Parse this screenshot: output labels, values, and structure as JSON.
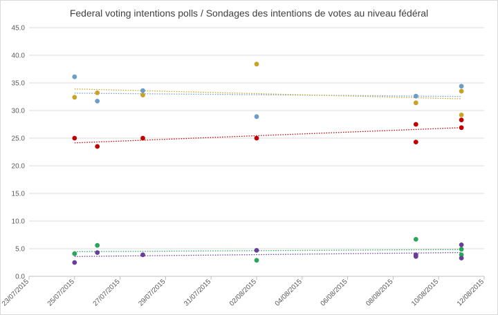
{
  "chart_data": {
    "type": "scatter",
    "title": "Federal voting intentions polls / Sondages des intentions de votes au niveau fédéral",
    "xlabel": "",
    "ylabel": "",
    "x_type": "date",
    "xlim": [
      "2015-07-23",
      "2015-08-12"
    ],
    "x_ticks": [
      "23/07/2015",
      "25/07/2015",
      "27/07/2015",
      "29/07/2015",
      "31/07/2015",
      "02/08/2015",
      "04/08/2015",
      "06/08/2015",
      "08/08/2015",
      "10/08/2015",
      "12/08/2015"
    ],
    "ylim": [
      0,
      45
    ],
    "y_ticks": [
      "0.0",
      "5.0",
      "10.0",
      "15.0",
      "20.0",
      "25.0",
      "30.0",
      "35.0",
      "40.0",
      "45.0"
    ],
    "grid": "horizontal",
    "legend": "none",
    "trendlines": "linear, dotted",
    "series": [
      {
        "color": "#6a9ec8",
        "points": [
          {
            "x": "2015-07-25",
            "y": 36.1
          },
          {
            "x": "2015-07-26",
            "y": 31.7
          },
          {
            "x": "2015-07-28",
            "y": 33.6
          },
          {
            "x": "2015-08-02",
            "y": 28.9
          },
          {
            "x": "2015-08-09",
            "y": 32.6
          },
          {
            "x": "2015-08-11",
            "y": 34.4
          }
        ]
      },
      {
        "color": "#c9a227",
        "points": [
          {
            "x": "2015-07-25",
            "y": 32.4
          },
          {
            "x": "2015-07-26",
            "y": 33.2
          },
          {
            "x": "2015-07-28",
            "y": 32.8
          },
          {
            "x": "2015-08-02",
            "y": 38.4
          },
          {
            "x": "2015-08-09",
            "y": 31.4
          },
          {
            "x": "2015-08-11",
            "y": 33.5
          },
          {
            "x": "2015-08-11",
            "y": 29.2
          }
        ]
      },
      {
        "color": "#c00000",
        "points": [
          {
            "x": "2015-07-25",
            "y": 25.0
          },
          {
            "x": "2015-07-26",
            "y": 23.5
          },
          {
            "x": "2015-07-28",
            "y": 25.0
          },
          {
            "x": "2015-08-02",
            "y": 25.0
          },
          {
            "x": "2015-08-09",
            "y": 27.5
          },
          {
            "x": "2015-08-09",
            "y": 24.3
          },
          {
            "x": "2015-08-11",
            "y": 28.3
          },
          {
            "x": "2015-08-11",
            "y": 26.9
          }
        ]
      },
      {
        "color": "#2aa55a",
        "points": [
          {
            "x": "2015-07-25",
            "y": 4.1
          },
          {
            "x": "2015-07-26",
            "y": 5.6
          },
          {
            "x": "2015-08-02",
            "y": 2.9
          },
          {
            "x": "2015-08-09",
            "y": 6.7
          },
          {
            "x": "2015-08-11",
            "y": 4.9
          },
          {
            "x": "2015-08-11",
            "y": 3.9
          }
        ]
      },
      {
        "color": "#6a3d9a",
        "points": [
          {
            "x": "2015-07-25",
            "y": 2.5
          },
          {
            "x": "2015-07-26",
            "y": 4.3
          },
          {
            "x": "2015-07-28",
            "y": 3.9
          },
          {
            "x": "2015-08-02",
            "y": 4.7
          },
          {
            "x": "2015-08-09",
            "y": 3.9
          },
          {
            "x": "2015-08-09",
            "y": 3.6
          },
          {
            "x": "2015-08-11",
            "y": 5.7
          },
          {
            "x": "2015-08-11",
            "y": 3.3
          }
        ]
      }
    ]
  }
}
